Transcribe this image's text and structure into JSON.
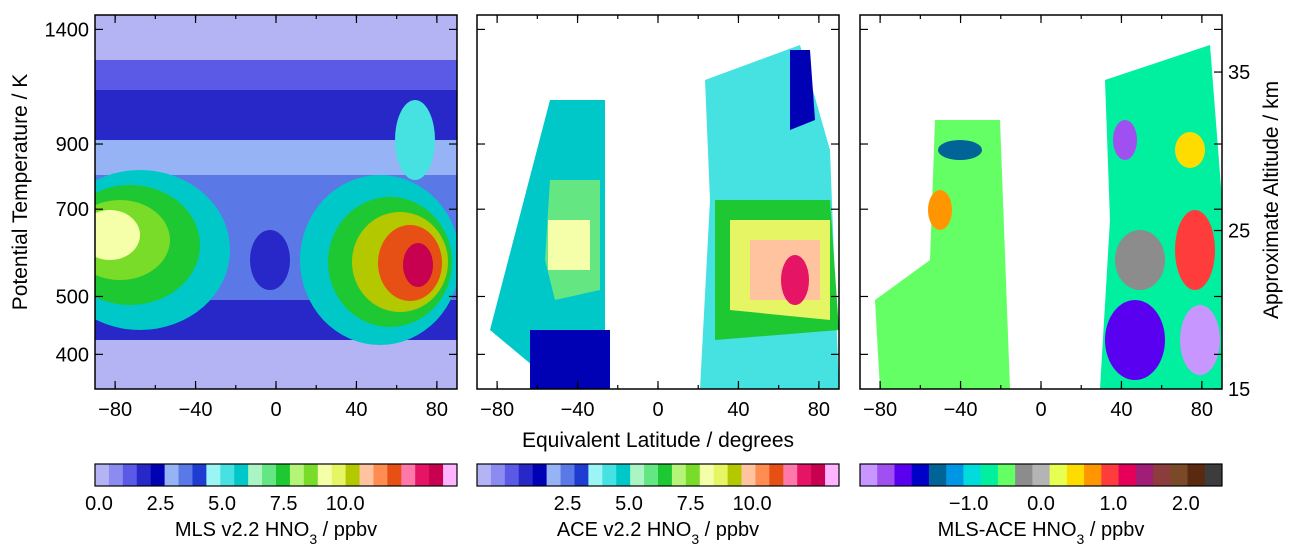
{
  "chart_data": {
    "type": "heatmap",
    "xlabel": "Equivalent Latitude / degrees",
    "ylabel_left": "Potential Temperature / K",
    "ylabel_right": "Approximate Altitude / km",
    "x_ticks": [
      "-80",
      "-40",
      "0",
      "40",
      "80"
    ],
    "y_ticks": [
      "400",
      "500",
      "700",
      "900",
      "1400"
    ],
    "altitude_ticks": [
      "15",
      "25",
      "35"
    ],
    "panels": [
      {
        "name": "MLS v2.2",
        "colorbar_ticks": [
          "0.0",
          "2.5",
          "5.0",
          "7.5",
          "10.0"
        ],
        "colorbar_label": "MLS v2.2 HNO",
        "colors": [
          "#b4b4f5",
          "#8c8cf0",
          "#5a5ae6",
          "#2828c8",
          "#0000b4",
          "#96b4f5",
          "#5a78e6",
          "#1e3cd2",
          "#9bf5f5",
          "#46e1e1",
          "#00c8c8",
          "#aaf5c3",
          "#64e682",
          "#1ec832",
          "#b4f578",
          "#78dc28",
          "#f5ffaa",
          "#e6f564",
          "#b4c800",
          "#ffc3a0",
          "#ff8c50",
          "#e65014",
          "#ff78aa",
          "#e61464",
          "#c80050",
          "#ffb4ff"
        ]
      },
      {
        "name": "ACE v2.2",
        "colorbar_ticks": [
          "2.5",
          "5.0",
          "7.5",
          "10.0"
        ],
        "colorbar_label": "ACE v2.2 HNO",
        "colors": [
          "#b4b4f5",
          "#8c8cf0",
          "#5a5ae6",
          "#2828c8",
          "#0000b4",
          "#96b4f5",
          "#5a78e6",
          "#1e3cd2",
          "#9bf5f5",
          "#46e1e1",
          "#00c8c8",
          "#aaf5c3",
          "#64e682",
          "#1ec832",
          "#b4f578",
          "#78dc28",
          "#f5ffaa",
          "#e6f564",
          "#b4c800",
          "#ffc3a0",
          "#ff8c50",
          "#e65014",
          "#ff78aa",
          "#e61464",
          "#c80050",
          "#ffb4ff"
        ]
      },
      {
        "name": "MLS-ACE",
        "colorbar_ticks": [
          "-1.0",
          "0.0",
          "1.0",
          "2.0"
        ],
        "colorbar_label": "MLS-ACE HNO",
        "colors": [
          "#c896ff",
          "#a050f0",
          "#5a00f0",
          "#0000c8",
          "#006496",
          "#0096e6",
          "#00dcdc",
          "#00f0a0",
          "#64ff64",
          "#8c8c8c",
          "#b4b4b4",
          "#e6ff50",
          "#ffdc00",
          "#ff9600",
          "#ff3c3c",
          "#e6005a",
          "#a01e78",
          "#8c3c3c",
          "#7a4a28",
          "#5a2a10",
          "#3c3c3c"
        ]
      }
    ],
    "colorbar_label_suffix": " / ppbv",
    "subscript": "3"
  }
}
